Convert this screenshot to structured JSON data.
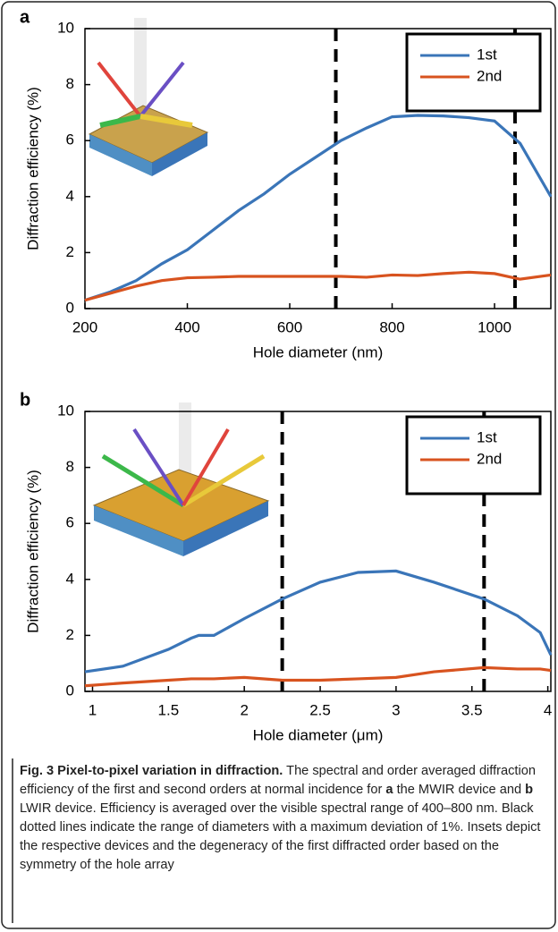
{
  "chart_data": [
    {
      "type": "line",
      "panel": "a",
      "x_label": "Hole diameter (nm)",
      "y_label": "Diffraction efficiency (%)",
      "x": [
        200,
        250,
        300,
        350,
        400,
        450,
        500,
        550,
        600,
        650,
        700,
        750,
        800,
        850,
        900,
        950,
        1000,
        1050,
        1110
      ],
      "series": [
        {
          "name": "1st",
          "color": "#3a75b8",
          "values": [
            0.3,
            0.6,
            1.0,
            1.6,
            2.1,
            2.8,
            3.5,
            4.1,
            4.8,
            5.4,
            6.0,
            6.45,
            6.85,
            6.9,
            6.88,
            6.82,
            6.7,
            5.9,
            4.0
          ]
        },
        {
          "name": "2nd",
          "color": "#d8531f",
          "values": [
            0.3,
            0.55,
            0.8,
            1.0,
            1.1,
            1.12,
            1.15,
            1.15,
            1.15,
            1.15,
            1.15,
            1.12,
            1.2,
            1.18,
            1.25,
            1.3,
            1.25,
            1.05,
            1.2
          ]
        }
      ],
      "vlines": [
        690,
        1040
      ],
      "xlim": [
        200,
        1110
      ],
      "ylim": [
        0,
        10
      ],
      "xticks": [
        200,
        400,
        600,
        800,
        1000
      ],
      "yticks": [
        0,
        2,
        4,
        6,
        8,
        10
      ],
      "legend": "upper right"
    },
    {
      "type": "line",
      "panel": "b",
      "x_label": "Hole diameter (μm)",
      "y_label": "Diffraction efficiency (%)",
      "x": [
        0.95,
        1.2,
        1.5,
        1.65,
        1.7,
        1.8,
        2.0,
        2.25,
        2.5,
        2.75,
        3.0,
        3.25,
        3.58,
        3.8,
        3.95,
        4.02
      ],
      "series": [
        {
          "name": "1st",
          "color": "#3a75b8",
          "values": [
            0.7,
            0.9,
            1.5,
            1.9,
            2.0,
            2.0,
            2.6,
            3.3,
            3.9,
            4.25,
            4.3,
            3.9,
            3.3,
            2.7,
            2.1,
            1.3
          ]
        },
        {
          "name": "2nd",
          "color": "#d8531f",
          "values": [
            0.2,
            0.3,
            0.4,
            0.45,
            0.45,
            0.45,
            0.5,
            0.4,
            0.4,
            0.45,
            0.5,
            0.7,
            0.85,
            0.8,
            0.8,
            0.75
          ]
        }
      ],
      "vlines": [
        2.25,
        3.58
      ],
      "xlim": [
        0.95,
        4.02
      ],
      "ylim": [
        0,
        10
      ],
      "xticks": [
        1,
        1.5,
        2,
        2.5,
        3,
        3.5,
        4
      ],
      "yticks": [
        0,
        2,
        4,
        6,
        8,
        10
      ],
      "legend": "upper right"
    }
  ],
  "caption": {
    "label": "Fig. 3 Pixel-to-pixel variation in diffraction.",
    "parts": [
      " The spectral and order averaged diffraction efficiency of the first and second orders at normal incidence for ",
      "a",
      " the MWIR device and ",
      "b",
      " LWIR device. Efficiency is averaged over the visible spectral range of 400–800 nm. Black dotted lines indicate the range of diameters with a maximum deviation of 1%. Insets depict the respective devices and the degeneracy of the first diffracted order based on the symmetry of the hole array"
    ]
  }
}
